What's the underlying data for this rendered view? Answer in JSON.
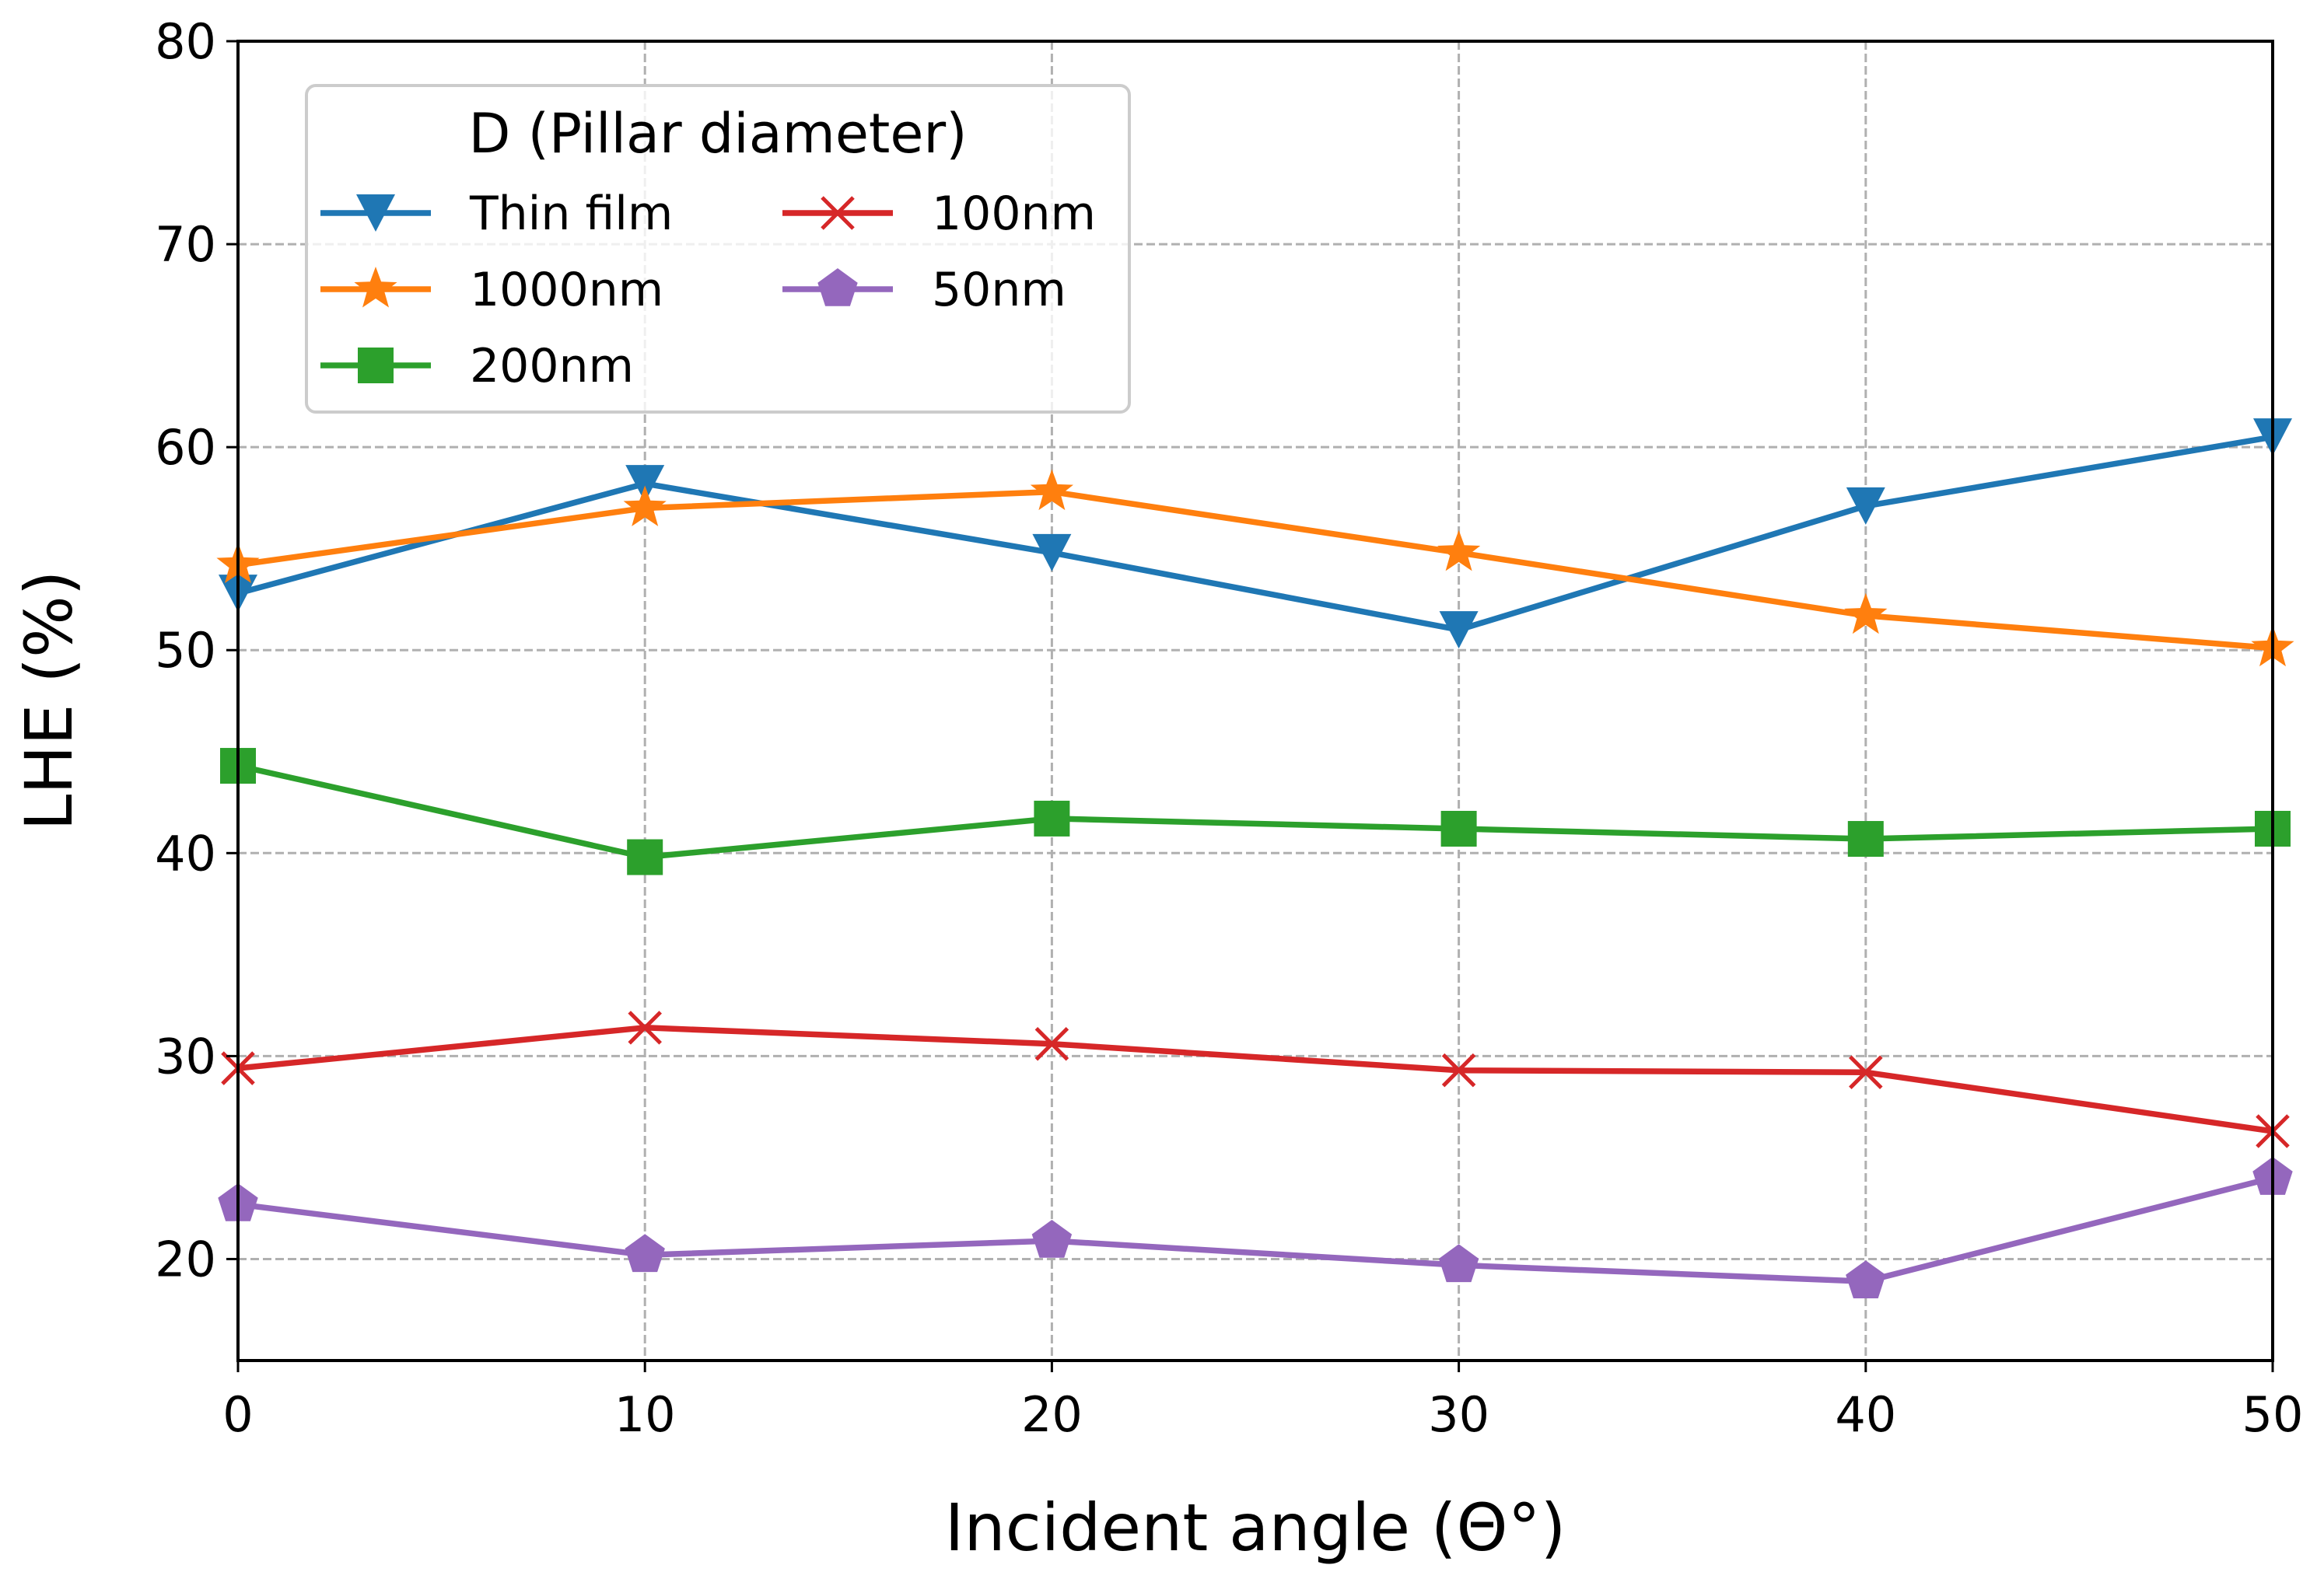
{
  "chart_data": {
    "type": "line",
    "title": "",
    "xlabel": "Incident angle (Θ°)",
    "ylabel": "LHE (%)",
    "xlim": [
      0,
      50
    ],
    "ylim": [
      15,
      80
    ],
    "xticks": [
      "0",
      "10",
      "20",
      "30",
      "40",
      "50"
    ],
    "yticks": [
      "20",
      "30",
      "40",
      "50",
      "60",
      "70",
      "80"
    ],
    "grid": true,
    "x": [
      0,
      10,
      20,
      30,
      40,
      50
    ],
    "legend": {
      "title": "D (Pillar diameter)",
      "position": "upper-left"
    },
    "series": [
      {
        "name": "Thin film",
        "color": "#1f77b4",
        "marker": "triangle-down",
        "values": [
          52.8,
          58.2,
          54.8,
          51.0,
          57.1,
          60.5
        ]
      },
      {
        "name": "1000nm",
        "color": "#ff7f0e",
        "marker": "star",
        "values": [
          54.2,
          57.0,
          57.8,
          54.8,
          51.7,
          50.1
        ]
      },
      {
        "name": "200nm",
        "color": "#2ca02c",
        "marker": "square",
        "values": [
          44.3,
          39.8,
          41.7,
          41.2,
          40.7,
          41.2
        ]
      },
      {
        "name": "100nm",
        "color": "#d62728",
        "marker": "x",
        "values": [
          29.4,
          31.4,
          30.6,
          29.3,
          29.2,
          26.3
        ]
      },
      {
        "name": "50nm",
        "color": "#9467bd",
        "marker": "pentagon",
        "values": [
          22.7,
          20.2,
          20.9,
          19.7,
          18.9,
          24.0
        ]
      }
    ]
  }
}
